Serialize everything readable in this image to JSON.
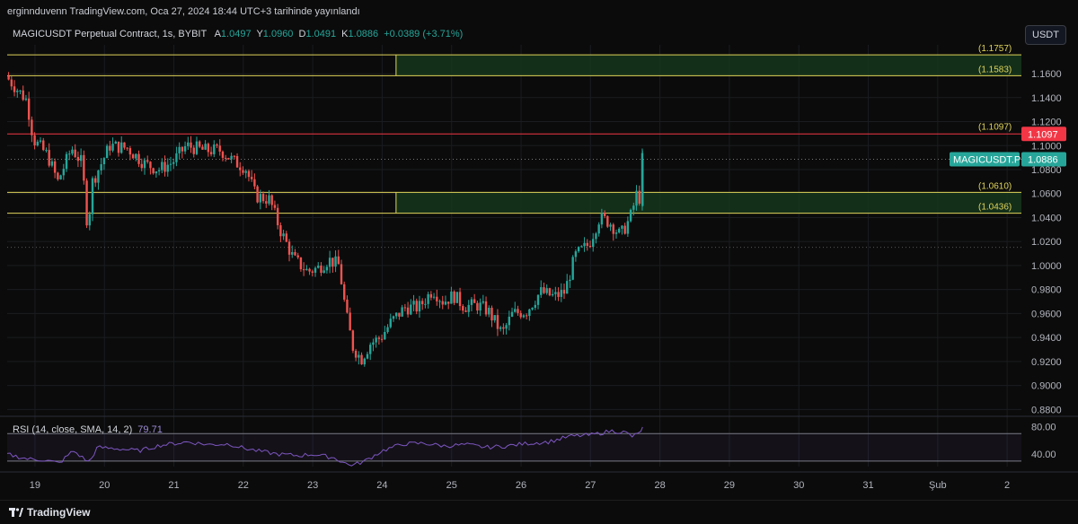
{
  "header": {
    "published_by": "erginnduvenn TradingView.com, Oca 27, 2024 18:44 UTC+3 tarihinde yayınlandı"
  },
  "legend": {
    "symbol": "MAGICUSDT Perpetual Contract, 1s, BYBIT",
    "open_label": "A",
    "open": "1.0497",
    "high_label": "Y",
    "high": "1.0960",
    "low_label": "D",
    "low": "1.0491",
    "close_label": "K",
    "close": "1.0886",
    "change": "+0.0389 (+3.71%)"
  },
  "currency_button": "USDT",
  "footer": {
    "brand": "TradingView",
    "logo_icon": "tradingview-logo-icon"
  },
  "colors": {
    "up": "#26a69a",
    "down": "#ef5350",
    "zone_line": "#e0d45a",
    "zone_fill": "#16361c",
    "resistance": "#f23645",
    "rsi": "#7e57c2",
    "background": "#0b0b0b"
  },
  "chart_data": [
    {
      "type": "candlestick",
      "xlabel": "",
      "ylabel": "",
      "x_ticks": [
        "19",
        "20",
        "21",
        "22",
        "23",
        "24",
        "25",
        "26",
        "27",
        "28",
        "29",
        "30",
        "31",
        "Şub",
        "2"
      ],
      "y_ticks": [
        "1.1600",
        "1.1400",
        "1.1200",
        "1.1000",
        "1.0800",
        "1.0600",
        "1.0400",
        "1.0200",
        "1.0000",
        "0.9800",
        "0.9600",
        "0.9400",
        "0.9200",
        "0.9000",
        "0.8800"
      ],
      "ylim": [
        0.875,
        1.184
      ],
      "grid": true,
      "zones": [
        {
          "top": 1.1757,
          "bottom": 1.1583,
          "top_label": "(1.1757)",
          "bottom_label": "(1.1583)",
          "start_day": 24.2
        },
        {
          "top": 1.061,
          "bottom": 1.0436,
          "top_label": "(1.0610)",
          "bottom_label": "(1.0436)",
          "start_day": 24.2
        }
      ],
      "resistance": {
        "value": 1.1097,
        "label": "(1.1097)",
        "badge": "1.1097"
      },
      "last_price": {
        "value": 1.0886,
        "symbol_badge": "MAGICUSDT.P",
        "badge": "1.0886"
      },
      "dotted_level": 1.0152,
      "path_points": [
        [
          18.6,
          1.158
        ],
        [
          18.9,
          1.138
        ],
        [
          19.0,
          1.105
        ],
        [
          19.2,
          1.092
        ],
        [
          19.35,
          1.07
        ],
        [
          19.55,
          1.098
        ],
        [
          19.7,
          1.085
        ],
        [
          19.78,
          1.03
        ],
        [
          19.85,
          1.07
        ],
        [
          20.1,
          1.1
        ],
        [
          20.35,
          1.098
        ],
        [
          20.6,
          1.085
        ],
        [
          20.8,
          1.08
        ],
        [
          21.0,
          1.086
        ],
        [
          21.2,
          1.1
        ],
        [
          21.45,
          1.096
        ],
        [
          21.7,
          1.096
        ],
        [
          21.9,
          1.086
        ],
        [
          22.05,
          1.082
        ],
        [
          22.2,
          1.058
        ],
        [
          22.4,
          1.055
        ],
        [
          22.55,
          1.03
        ],
        [
          22.75,
          1.005
        ],
        [
          22.95,
          0.995
        ],
        [
          23.1,
          0.998
        ],
        [
          23.25,
          1.005
        ],
        [
          23.4,
          1.0
        ],
        [
          23.5,
          0.96
        ],
        [
          23.6,
          0.932
        ],
        [
          23.72,
          0.922
        ],
        [
          23.85,
          0.935
        ],
        [
          24.0,
          0.94
        ],
        [
          24.15,
          0.953
        ],
        [
          24.35,
          0.965
        ],
        [
          24.55,
          0.965
        ],
        [
          24.75,
          0.98
        ],
        [
          24.9,
          0.97
        ],
        [
          25.05,
          0.975
        ],
        [
          25.2,
          0.966
        ],
        [
          25.4,
          0.967
        ],
        [
          25.55,
          0.962
        ],
        [
          25.75,
          0.943
        ],
        [
          25.9,
          0.96
        ],
        [
          26.1,
          0.962
        ],
        [
          26.3,
          0.978
        ],
        [
          26.5,
          0.974
        ],
        [
          26.65,
          0.978
        ],
        [
          26.8,
          1.008
        ],
        [
          27.0,
          1.018
        ],
        [
          27.15,
          1.04
        ],
        [
          27.3,
          1.036
        ],
        [
          27.45,
          1.025
        ],
        [
          27.55,
          1.035
        ],
        [
          27.62,
          1.044
        ],
        [
          27.68,
          1.06
        ],
        [
          27.72,
          1.05
        ],
        [
          27.75,
          1.0886
        ]
      ]
    },
    {
      "type": "line",
      "name": "RSI (14, close, SMA, 14, 2)",
      "last_value": "79.71",
      "ylim": [
        22,
        90
      ],
      "bands": {
        "upper": 70,
        "lower": 30
      },
      "y_ticks": [
        "80.00",
        "40.00"
      ],
      "path_points": [
        [
          18.6,
          40
        ],
        [
          18.9,
          33
        ],
        [
          19.1,
          32
        ],
        [
          19.35,
          27
        ],
        [
          19.55,
          45
        ],
        [
          19.78,
          28
        ],
        [
          19.9,
          50
        ],
        [
          20.2,
          48
        ],
        [
          20.5,
          45
        ],
        [
          20.8,
          53
        ],
        [
          21.2,
          58
        ],
        [
          21.5,
          54
        ],
        [
          21.8,
          55
        ],
        [
          22.0,
          49
        ],
        [
          22.2,
          45
        ],
        [
          22.5,
          40
        ],
        [
          22.8,
          38
        ],
        [
          23.0,
          40
        ],
        [
          23.3,
          35
        ],
        [
          23.55,
          23
        ],
        [
          23.75,
          30
        ],
        [
          24.0,
          45
        ],
        [
          24.3,
          55
        ],
        [
          24.6,
          56
        ],
        [
          24.9,
          52
        ],
        [
          25.2,
          54
        ],
        [
          25.5,
          50
        ],
        [
          25.8,
          52
        ],
        [
          26.1,
          56
        ],
        [
          26.4,
          58
        ],
        [
          26.7,
          66
        ],
        [
          27.0,
          68
        ],
        [
          27.3,
          74
        ],
        [
          27.5,
          72
        ],
        [
          27.6,
          66
        ],
        [
          27.7,
          70
        ],
        [
          27.75,
          79.71
        ]
      ]
    }
  ]
}
